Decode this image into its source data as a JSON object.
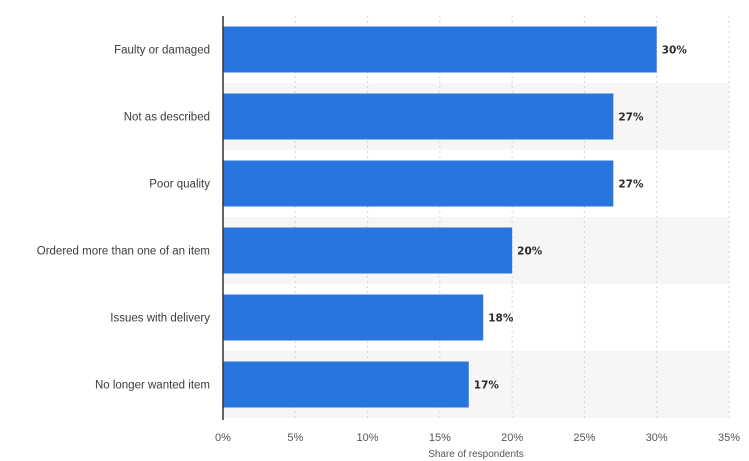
{
  "chart_data": {
    "type": "bar",
    "orientation": "horizontal",
    "categories": [
      "Faulty or damaged",
      "Not as described",
      "Poor quality",
      "Ordered more than one of an item",
      "Issues with delivery",
      "No longer wanted item"
    ],
    "values": [
      30,
      27,
      27,
      20,
      18,
      17
    ],
    "value_labels": [
      "30%",
      "27%",
      "27%",
      "20%",
      "18%",
      "17%"
    ],
    "xlabel": "Share of respondents",
    "xlim": [
      0,
      35
    ],
    "xticks": [
      0,
      5,
      10,
      15,
      20,
      25,
      30,
      35
    ],
    "xtick_labels": [
      "0%",
      "5%",
      "10%",
      "15%",
      "20%",
      "25%",
      "30%",
      "35%"
    ],
    "grid": true,
    "legend": "none",
    "colors": {
      "bar": "#2876dd",
      "grid": "#d6d6d6",
      "axis": "#333333",
      "band": "#f6f6f6"
    }
  }
}
